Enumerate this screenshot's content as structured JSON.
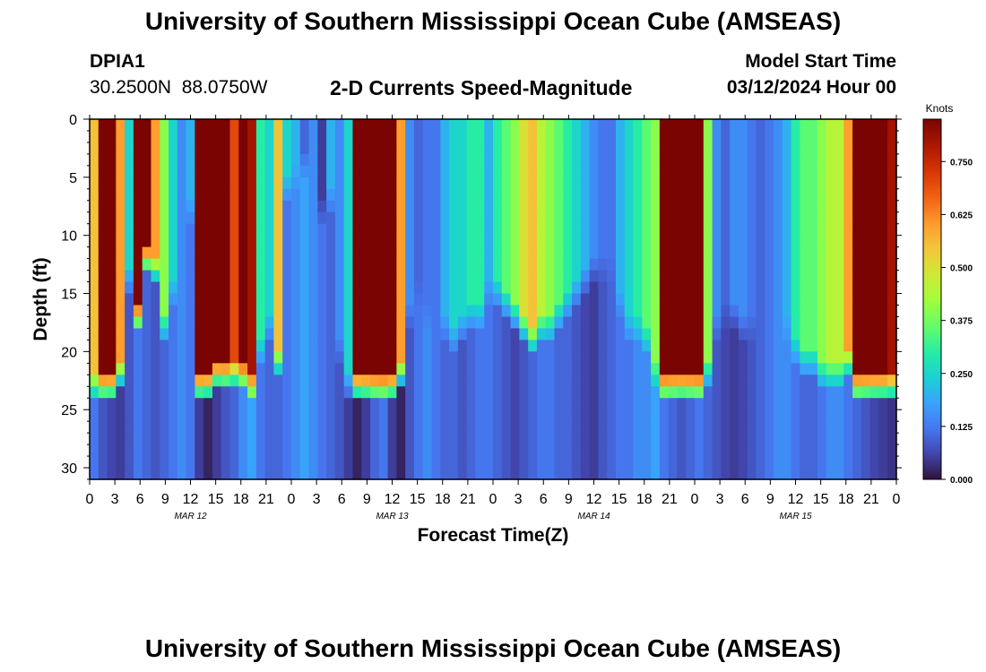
{
  "header": {
    "title": "University of Southern Mississippi Ocean Cube (AMSEAS)",
    "station_id": "DPIA1",
    "coords": "30.2500N  88.0750W",
    "plot_title": "2-D Currents Speed-Magnitude",
    "model_start_label": "Model Start Time",
    "model_start_value": "03/12/2024 Hour 00"
  },
  "footer": {
    "title": "University of Southern Mississippi Ocean Cube (AMSEAS)"
  },
  "chart_data": {
    "type": "heatmap",
    "title": "2-D Currents Speed-Magnitude",
    "xlabel": "Forecast Time(Z)",
    "ylabel": "Depth (ft)",
    "xlim": [
      0,
      96
    ],
    "ylim": [
      0,
      31
    ],
    "x_ticks": [
      0,
      3,
      6,
      9,
      12,
      15,
      18,
      21,
      24,
      27,
      30,
      33,
      36,
      39,
      42,
      45,
      48,
      51,
      54,
      57,
      60,
      63,
      66,
      69,
      72,
      75,
      78,
      81,
      84,
      87,
      90,
      93,
      96
    ],
    "x_tick_labels": [
      "0",
      "3",
      "6",
      "9",
      "12",
      "15",
      "18",
      "21",
      "0",
      "3",
      "6",
      "9",
      "12",
      "15",
      "18",
      "21",
      "0",
      "3",
      "6",
      "9",
      "12",
      "15",
      "18",
      "21",
      "0",
      "3",
      "6",
      "9",
      "12",
      "15",
      "18",
      "21",
      "0"
    ],
    "y_ticks": [
      0,
      5,
      10,
      15,
      20,
      25,
      30
    ],
    "y_tick_labels": [
      "0",
      "5",
      "10",
      "15",
      "20",
      "25",
      "30"
    ],
    "day_labels": [
      {
        "hour": 12,
        "label": "MAR 12"
      },
      {
        "hour": 36,
        "label": "MAR 13"
      },
      {
        "hour": 60,
        "label": "MAR 14"
      },
      {
        "hour": 84,
        "label": "MAR 15"
      }
    ],
    "colorbar": {
      "units": "Knots",
      "min": 0.0,
      "max": 0.85,
      "ticks": [
        0.0,
        0.125,
        0.25,
        0.375,
        0.5,
        0.625,
        0.75
      ],
      "tick_labels": [
        "0.000",
        "0.125",
        "0.250",
        "0.375",
        "0.500",
        "0.625",
        "0.750"
      ]
    },
    "surface_layer_speed_knots": [
      0.55,
      0.85,
      0.85,
      0.6,
      0.25,
      0.85,
      0.85,
      0.6,
      0.4,
      0.25,
      0.15,
      0.2,
      0.85,
      0.85,
      0.85,
      0.85,
      0.7,
      0.85,
      0.8,
      0.3,
      0.25,
      0.55,
      0.25,
      0.2,
      0.1,
      0.15,
      0.05,
      0.2,
      0.15,
      0.25,
      0.85,
      0.85,
      0.85,
      0.85,
      0.85,
      0.6,
      0.15,
      0.1,
      0.12,
      0.12,
      0.2,
      0.25,
      0.25,
      0.3,
      0.3,
      0.2,
      0.3,
      0.35,
      0.4,
      0.5,
      0.55,
      0.45,
      0.4,
      0.35,
      0.3,
      0.25,
      0.2,
      0.15,
      0.12,
      0.12,
      0.2,
      0.25,
      0.3,
      0.35,
      0.4,
      0.85,
      0.85,
      0.85,
      0.85,
      0.85,
      0.4,
      0.15,
      0.1,
      0.15,
      0.15,
      0.12,
      0.1,
      0.12,
      0.15,
      0.2,
      0.3,
      0.35,
      0.35,
      0.4,
      0.45,
      0.45,
      0.6,
      0.85,
      0.85,
      0.85,
      0.85,
      0.8
    ],
    "surface_layer_bottom_ft": [
      23,
      23,
      23,
      22,
      14,
      17,
      12,
      13,
      18,
      15,
      9,
      8,
      23,
      23,
      22,
      22,
      22,
      22,
      23,
      20,
      18,
      21,
      6,
      5,
      4,
      4,
      8,
      7,
      20,
      23,
      23,
      23,
      23,
      23,
      23,
      22,
      17,
      15,
      17,
      17,
      18,
      19,
      18,
      17,
      17,
      15,
      15,
      16,
      17,
      18,
      19,
      18,
      18,
      17,
      16,
      15,
      14,
      13,
      13,
      13,
      16,
      18,
      18,
      19,
      22,
      23,
      23,
      23,
      23,
      23,
      22,
      18,
      17,
      17,
      18,
      18,
      18,
      17,
      17,
      18,
      20,
      21,
      21,
      22,
      22,
      22,
      21,
      23,
      23,
      23,
      23,
      23
    ],
    "bottom_layer_speed_knots": [
      0.12,
      0.08,
      0.06,
      0.05,
      0.08,
      0.12,
      0.1,
      0.08,
      0.1,
      0.12,
      0.15,
      0.12,
      0.05,
      0.02,
      0.05,
      0.08,
      0.1,
      0.15,
      0.18,
      0.12,
      0.1,
      0.1,
      0.12,
      0.15,
      0.18,
      0.15,
      0.12,
      0.1,
      0.08,
      0.05,
      0.02,
      0.05,
      0.1,
      0.12,
      0.05,
      0.02,
      0.08,
      0.12,
      0.15,
      0.12,
      0.1,
      0.1,
      0.08,
      0.1,
      0.12,
      0.12,
      0.1,
      0.08,
      0.06,
      0.08,
      0.1,
      0.12,
      0.12,
      0.1,
      0.1,
      0.08,
      0.06,
      0.05,
      0.08,
      0.1,
      0.12,
      0.12,
      0.15,
      0.15,
      0.18,
      0.12,
      0.1,
      0.08,
      0.1,
      0.12,
      0.1,
      0.08,
      0.06,
      0.05,
      0.06,
      0.08,
      0.1,
      0.12,
      0.15,
      0.15,
      0.12,
      0.1,
      0.1,
      0.12,
      0.15,
      0.15,
      0.12,
      0.1,
      0.08,
      0.06,
      0.05,
      0.04
    ]
  }
}
